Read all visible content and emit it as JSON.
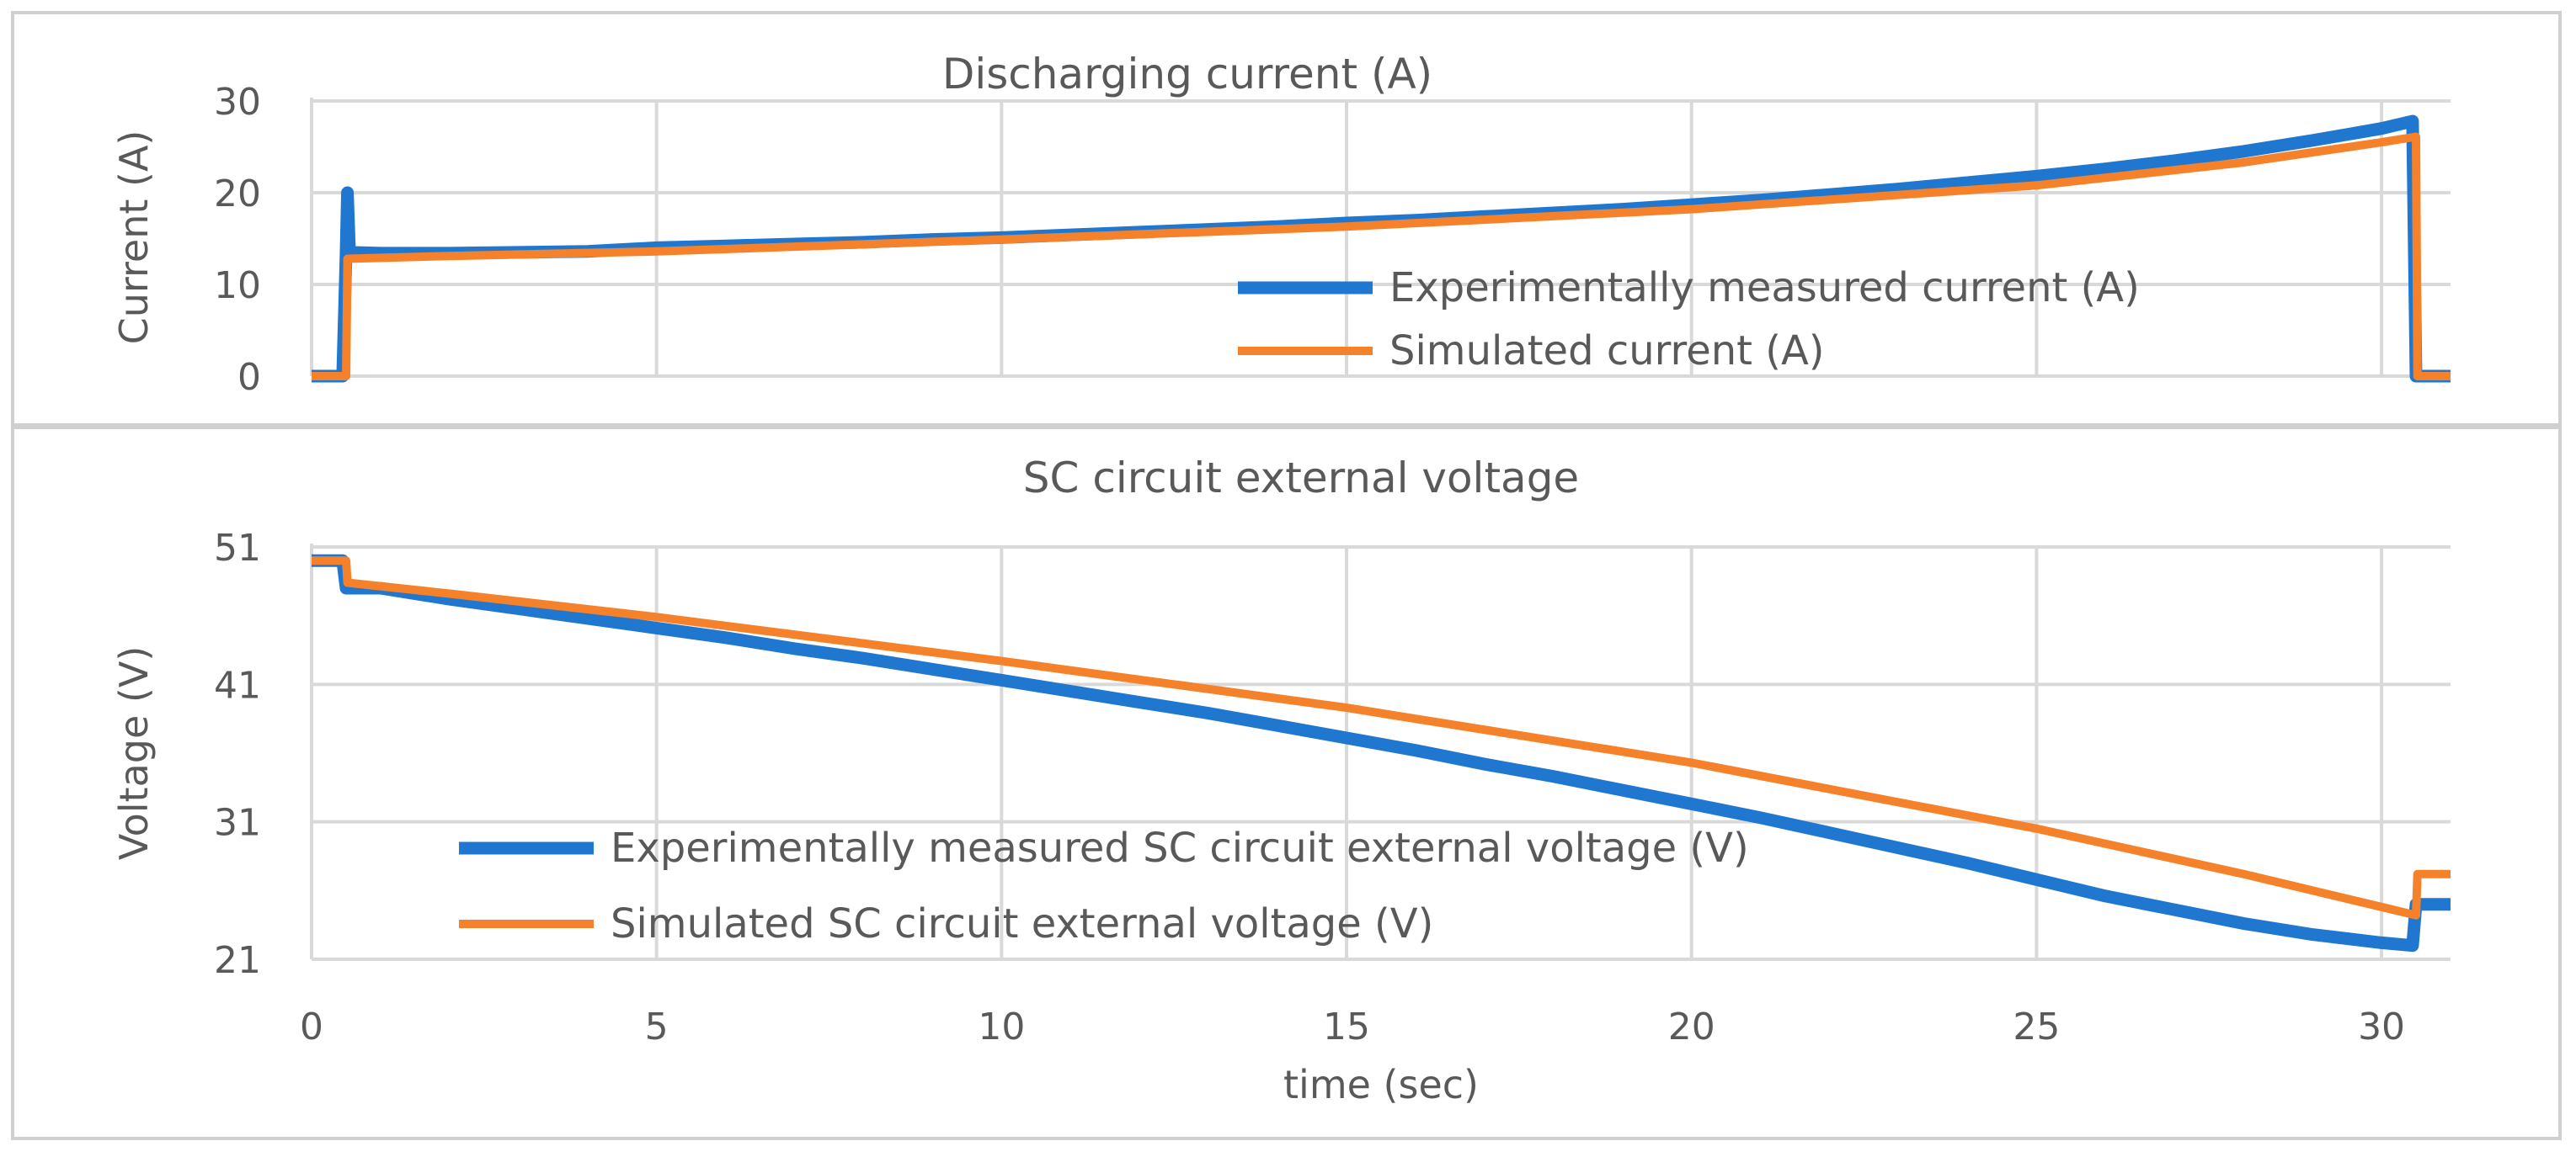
{
  "chart_data": [
    {
      "type": "line",
      "title": "Discharging current (A)",
      "xlabel": "",
      "ylabel": "Current (A)",
      "xlim": [
        0,
        31
      ],
      "ylim": [
        0,
        30
      ],
      "yticks": [
        0,
        10,
        20,
        30
      ],
      "grid": true,
      "legend": "bottom-right",
      "series": [
        {
          "name": "Experimentally measured current (A)",
          "color": "#1f77d0",
          "points": [
            [
              0,
              0
            ],
            [
              0.45,
              0
            ],
            [
              0.5,
              13.5
            ],
            [
              0.52,
              20
            ],
            [
              0.55,
              13.5
            ],
            [
              1,
              13.4
            ],
            [
              2,
              13.4
            ],
            [
              3,
              13.5
            ],
            [
              4,
              13.6
            ],
            [
              5,
              14.0
            ],
            [
              6,
              14.2
            ],
            [
              7,
              14.4
            ],
            [
              8,
              14.6
            ],
            [
              9,
              14.9
            ],
            [
              10,
              15.1
            ],
            [
              11,
              15.4
            ],
            [
              12,
              15.7
            ],
            [
              13,
              16.0
            ],
            [
              14,
              16.3
            ],
            [
              15,
              16.7
            ],
            [
              16,
              17.0
            ],
            [
              17,
              17.4
            ],
            [
              18,
              17.8
            ],
            [
              19,
              18.2
            ],
            [
              20,
              18.7
            ],
            [
              21,
              19.2
            ],
            [
              22,
              19.8
            ],
            [
              23,
              20.4
            ],
            [
              24,
              21.1
            ],
            [
              25,
              21.8
            ],
            [
              26,
              22.6
            ],
            [
              27,
              23.5
            ],
            [
              28,
              24.5
            ],
            [
              29,
              25.7
            ],
            [
              30,
              27.0
            ],
            [
              30.45,
              27.8
            ],
            [
              30.5,
              0
            ],
            [
              31,
              0
            ]
          ]
        },
        {
          "name": "Simulated current (A)",
          "color": "#f5822a",
          "points": [
            [
              0,
              0
            ],
            [
              0.5,
              0
            ],
            [
              0.52,
              12.8
            ],
            [
              2,
              13.1
            ],
            [
              5,
              13.6
            ],
            [
              10,
              14.9
            ],
            [
              15,
              16.3
            ],
            [
              20,
              18.2
            ],
            [
              25,
              20.8
            ],
            [
              28,
              23.3
            ],
            [
              30,
              25.5
            ],
            [
              30.5,
              26.1
            ],
            [
              30.52,
              0
            ],
            [
              31,
              0
            ]
          ]
        }
      ]
    },
    {
      "type": "line",
      "title": "SC circuit external voltage",
      "xlabel": "time (sec)",
      "ylabel": "Voltage (V)",
      "xlim": [
        0,
        31
      ],
      "ylim": [
        21,
        51
      ],
      "yticks": [
        21,
        31,
        41,
        51
      ],
      "xticks": [
        0,
        5,
        10,
        15,
        20,
        25,
        30
      ],
      "grid": true,
      "legend": "bottom-left",
      "series": [
        {
          "name": "Experimentally measured SC circuit external voltage (V)",
          "color": "#1f77d0",
          "points": [
            [
              0,
              50
            ],
            [
              0.45,
              50
            ],
            [
              0.5,
              48
            ],
            [
              1,
              48.0
            ],
            [
              2,
              47.2
            ],
            [
              3,
              46.5
            ],
            [
              4,
              45.8
            ],
            [
              5,
              45.1
            ],
            [
              6,
              44.4
            ],
            [
              7,
              43.6
            ],
            [
              8,
              42.9
            ],
            [
              9,
              42.1
            ],
            [
              10,
              41.3
            ],
            [
              11,
              40.5
            ],
            [
              12,
              39.7
            ],
            [
              13,
              38.9
            ],
            [
              14,
              38.0
            ],
            [
              15,
              37.1
            ],
            [
              16,
              36.2
            ],
            [
              17,
              35.2
            ],
            [
              18,
              34.3
            ],
            [
              19,
              33.3
            ],
            [
              20,
              32.3
            ],
            [
              21,
              31.3
            ],
            [
              22,
              30.2
            ],
            [
              23,
              29.1
            ],
            [
              24,
              28.0
            ],
            [
              25,
              26.8
            ],
            [
              26,
              25.6
            ],
            [
              27,
              24.6
            ],
            [
              28,
              23.6
            ],
            [
              29,
              22.8
            ],
            [
              30,
              22.2
            ],
            [
              30.45,
              22.0
            ],
            [
              30.5,
              25.0
            ],
            [
              31,
              25.0
            ]
          ]
        },
        {
          "name": "Simulated SC circuit external voltage (V)",
          "color": "#f5822a",
          "points": [
            [
              0,
              50
            ],
            [
              0.5,
              50
            ],
            [
              0.52,
              48.4
            ],
            [
              2,
              47.6
            ],
            [
              5,
              45.9
            ],
            [
              10,
              42.7
            ],
            [
              15,
              39.3
            ],
            [
              20,
              35.3
            ],
            [
              25,
              30.5
            ],
            [
              28,
              27.2
            ],
            [
              30,
              24.8
            ],
            [
              30.5,
              24.2
            ],
            [
              30.52,
              27.2
            ],
            [
              31,
              27.2
            ]
          ]
        }
      ]
    }
  ]
}
